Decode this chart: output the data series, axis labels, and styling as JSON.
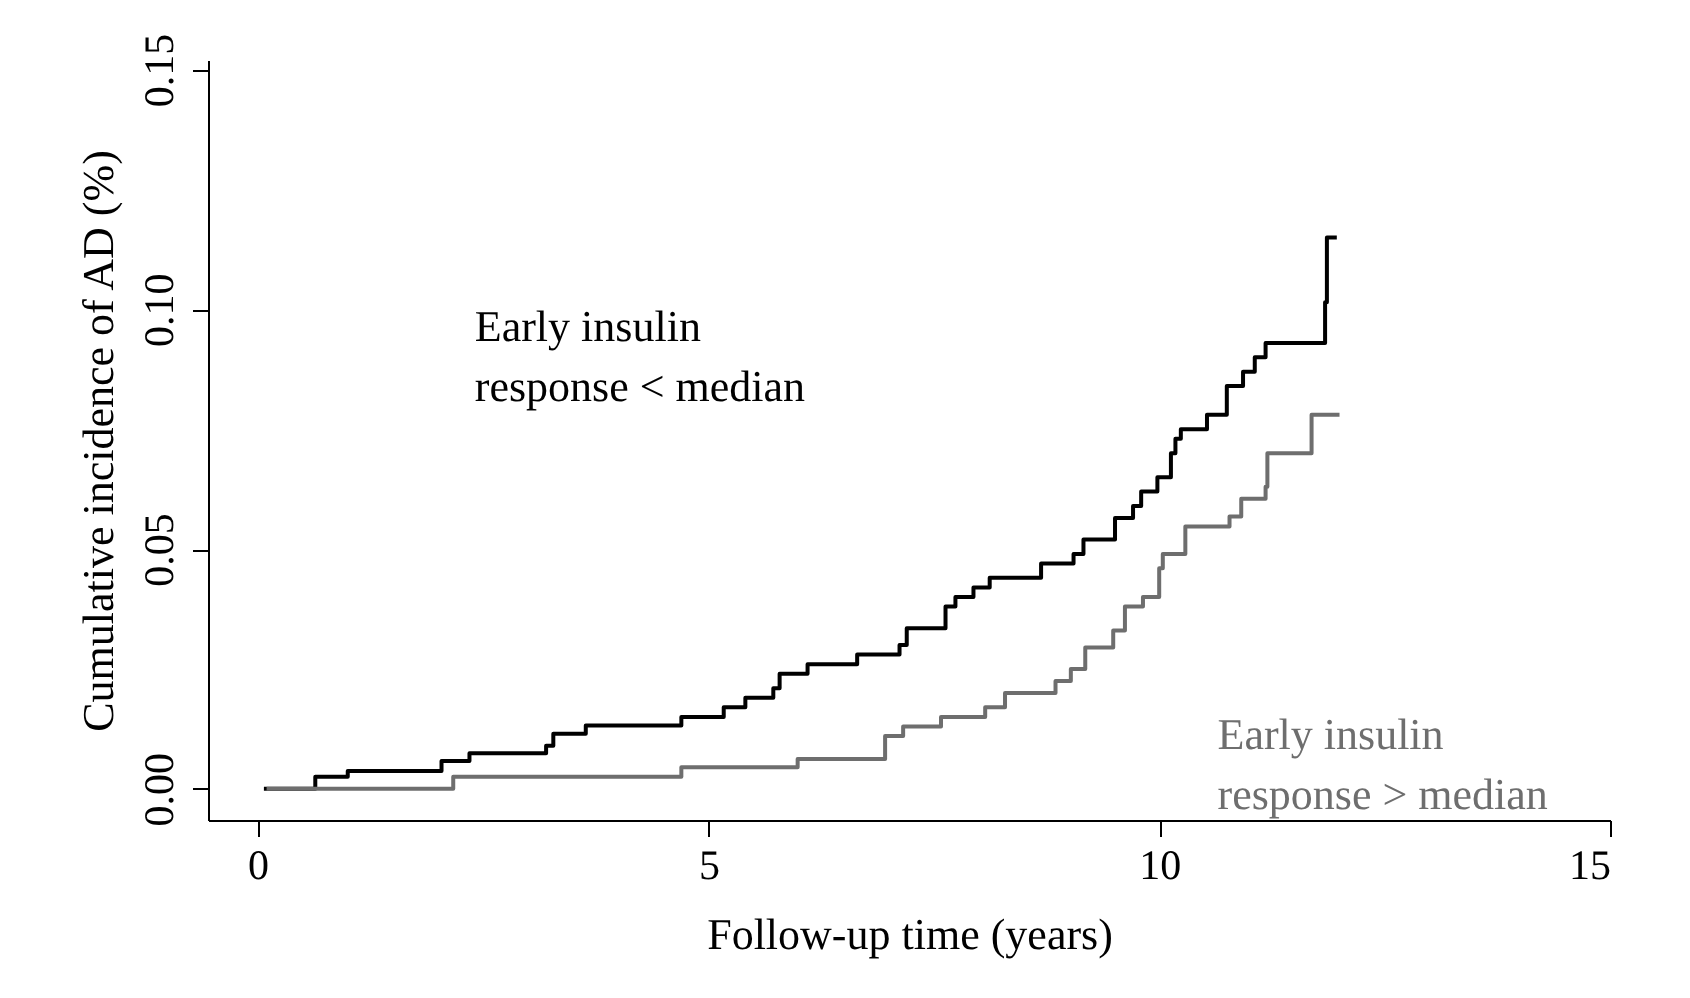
{
  "chart_data": {
    "type": "step",
    "xlabel": "Follow-up time (years)",
    "ylabel": "Cumulative incidence of AD (%)",
    "xlim": [
      -0.55,
      15
    ],
    "xticks": [
      0,
      5,
      10,
      15
    ],
    "ylim": [
      -0.0065,
      0.152
    ],
    "yticks": [
      {
        "value": 0,
        "label": "0.00"
      },
      {
        "value": 0.05,
        "label": "0.05"
      },
      {
        "value": 0.1,
        "label": "0.10"
      },
      {
        "value": 0.15,
        "label": "0.15"
      }
    ],
    "grid": false,
    "marker": "none",
    "line_style": "solid",
    "series": [
      {
        "name": "Early insulin\nresponse < median",
        "color": "#000000",
        "x": [
          0.07,
          0.64,
          1.0,
          2.04,
          2.35,
          3.2,
          3.28,
          3.64,
          4.7,
          5.17,
          5.41,
          5.72,
          5.79,
          6.1,
          6.65,
          7.12,
          7.2,
          7.63,
          7.74,
          7.94,
          8.12,
          8.69,
          9.05,
          9.16,
          9.51,
          9.71,
          9.8,
          9.98,
          10.13,
          10.18,
          10.24,
          10.53,
          10.75,
          10.93,
          11.06,
          11.18,
          11.84,
          11.86,
          11.97
        ],
        "values": [
          0,
          0.0025,
          0.0037,
          0.0058,
          0.0074,
          0.009,
          0.0115,
          0.0132,
          0.015,
          0.017,
          0.019,
          0.021,
          0.024,
          0.026,
          0.028,
          0.03,
          0.0335,
          0.038,
          0.04,
          0.042,
          0.044,
          0.047,
          0.049,
          0.052,
          0.0565,
          0.059,
          0.062,
          0.065,
          0.07,
          0.073,
          0.075,
          0.078,
          0.084,
          0.087,
          0.09,
          0.093,
          0.1015,
          0.115,
          0.115
        ]
      },
      {
        "name": "Early insulin\nresponse > median",
        "color": "#6e6e6e",
        "x": [
          0.1,
          2.17,
          4.7,
          5.99,
          6.96,
          7.16,
          7.58,
          8.07,
          8.29,
          8.85,
          9.02,
          9.18,
          9.49,
          9.62,
          9.82,
          10.0,
          10.04,
          10.29,
          10.78,
          10.91,
          11.18,
          11.2,
          11.69,
          12.0
        ],
        "values": [
          0,
          0.0025,
          0.0045,
          0.0062,
          0.011,
          0.013,
          0.015,
          0.017,
          0.02,
          0.0225,
          0.025,
          0.0295,
          0.033,
          0.038,
          0.04,
          0.046,
          0.049,
          0.0547,
          0.0568,
          0.0605,
          0.063,
          0.07,
          0.078,
          0.078
        ]
      }
    ]
  }
}
